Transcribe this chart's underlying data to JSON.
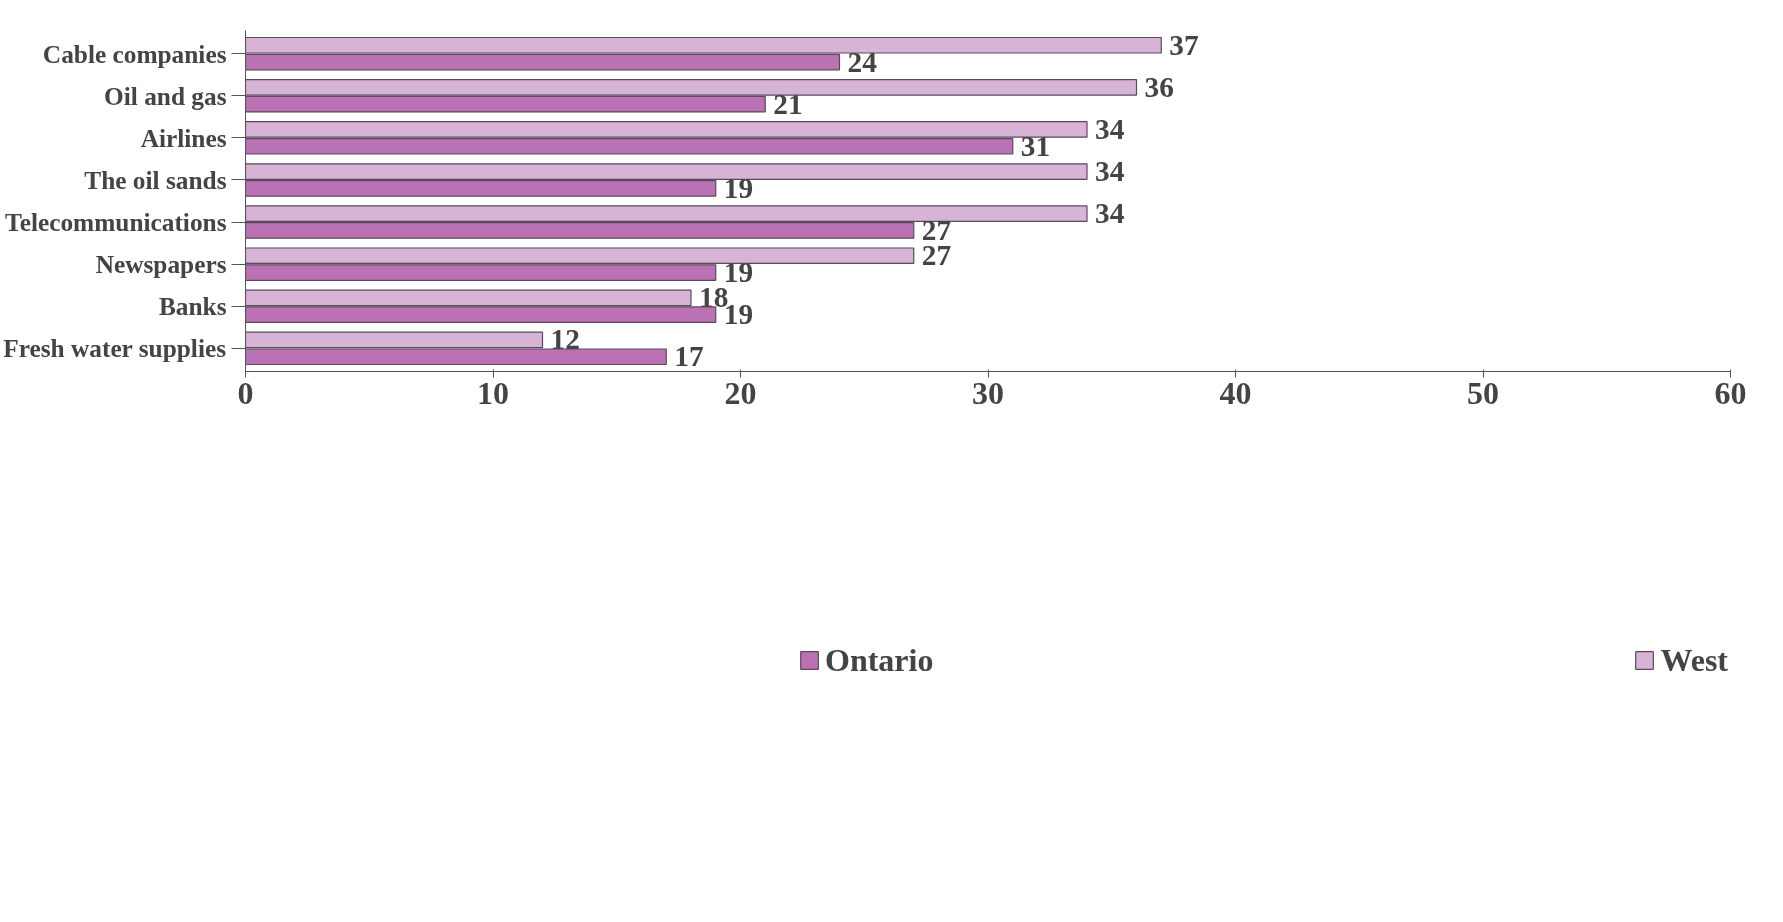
{
  "chart_data": {
    "type": "bar",
    "orientation": "horizontal",
    "categories": [
      "Cable companies",
      "Oil and gas",
      "Airlines",
      "The oil sands",
      "Telecommunications",
      "Newspapers",
      "Banks",
      "Fresh water supplies"
    ],
    "series": [
      {
        "name": "West",
        "color": "#d7b3d6",
        "values": [
          37,
          36,
          34,
          34,
          34,
          27,
          18,
          12
        ]
      },
      {
        "name": "Ontario",
        "color": "#bb72b5",
        "values": [
          24,
          21,
          31,
          19,
          27,
          19,
          19,
          17
        ]
      }
    ],
    "xlim": [
      0,
      60
    ],
    "xticks": [
      0,
      10,
      20,
      30,
      40,
      50,
      60
    ],
    "grid": false,
    "data_labels": true,
    "legend": "bottom"
  }
}
